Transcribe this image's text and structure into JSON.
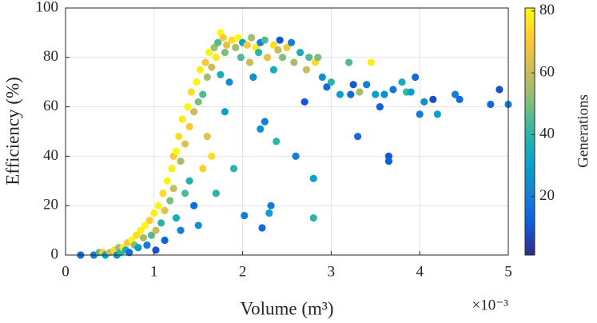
{
  "chart_data": {
    "type": "scatter",
    "xlabel": "Volume (m³)",
    "ylabel": "Efficiency (%)",
    "x_multiplier": "×10⁻³",
    "colorbar_label": "Generations",
    "xlim": [
      0,
      5
    ],
    "xticks": [
      0,
      1,
      2,
      3,
      4,
      5
    ],
    "ylim": [
      0,
      100
    ],
    "yticks": [
      0,
      20,
      40,
      60,
      80,
      100
    ],
    "clim": [
      1,
      81
    ],
    "cticks": [
      20,
      40,
      60,
      80
    ],
    "colormap": [
      "#352a87",
      "#0f5cdd",
      "#1481d6",
      "#06a4ca",
      "#2eb7a4",
      "#87bf77",
      "#d1bb59",
      "#fec832",
      "#f9fb0e"
    ],
    "grid": true,
    "x": [
      0.17,
      0.32,
      0.38,
      0.42,
      0.45,
      0.5,
      0.55,
      0.58,
      0.6,
      0.62,
      0.65,
      0.68,
      0.7,
      0.72,
      0.75,
      0.78,
      0.8,
      0.82,
      0.85,
      0.88,
      0.9,
      0.92,
      0.95,
      0.97,
      1.0,
      1.02,
      1.02,
      1.05,
      1.08,
      1.1,
      1.12,
      1.12,
      1.15,
      1.18,
      1.2,
      1.22,
      1.22,
      1.25,
      1.25,
      1.28,
      1.3,
      1.3,
      1.32,
      1.35,
      1.35,
      1.38,
      1.4,
      1.4,
      1.42,
      1.45,
      1.45,
      1.48,
      1.5,
      1.5,
      1.52,
      1.55,
      1.55,
      1.58,
      1.6,
      1.6,
      1.62,
      1.65,
      1.65,
      1.68,
      1.7,
      1.7,
      1.72,
      1.75,
      1.75,
      1.78,
      1.8,
      1.8,
      1.82,
      1.85,
      1.88,
      1.9,
      1.92,
      1.95,
      1.98,
      2.0,
      2.02,
      2.05,
      2.08,
      2.1,
      2.12,
      2.15,
      2.18,
      2.2,
      2.2,
      2.22,
      2.25,
      2.25,
      2.28,
      2.3,
      2.32,
      2.35,
      2.35,
      2.38,
      2.4,
      2.42,
      2.45,
      2.5,
      2.55,
      2.58,
      2.6,
      2.65,
      2.7,
      2.72,
      2.75,
      2.8,
      2.8,
      2.82,
      2.85,
      2.9,
      2.95,
      3.0,
      3.1,
      3.2,
      3.22,
      3.25,
      3.3,
      3.32,
      3.4,
      3.45,
      3.5,
      3.55,
      3.6,
      3.65,
      3.65,
      3.7,
      3.8,
      3.85,
      3.9,
      3.95,
      4.0,
      4.05,
      4.15,
      4.2,
      4.4,
      4.45,
      4.8,
      4.9,
      5.0
    ],
    "values": [
      0,
      0,
      1,
      1,
      0,
      1,
      2,
      0,
      3,
      1,
      3,
      2,
      5,
      1,
      6,
      4,
      8,
      3,
      10,
      7,
      12,
      4,
      14,
      8,
      17,
      10,
      2,
      20,
      13,
      25,
      18,
      6,
      30,
      22,
      35,
      27,
      40,
      42,
      15,
      48,
      38,
      10,
      55,
      45,
      25,
      60,
      52,
      30,
      66,
      58,
      20,
      70,
      62,
      12,
      75,
      65,
      35,
      78,
      72,
      48,
      82,
      76,
      40,
      84,
      80,
      25,
      86,
      90,
      73,
      88,
      82,
      58,
      85,
      70,
      87,
      35,
      84,
      88,
      80,
      86,
      16,
      85,
      78,
      88,
      72,
      84,
      82,
      86,
      51,
      11,
      87,
      54,
      80,
      17,
      20,
      85,
      75,
      46,
      83,
      87,
      80,
      84,
      86,
      78,
      40,
      82,
      62,
      75,
      80,
      31,
      15,
      78,
      80,
      72,
      68,
      70,
      65,
      78,
      65,
      69,
      48,
      66,
      69,
      78,
      65,
      60,
      65,
      40,
      38,
      67,
      70,
      66,
      66,
      72,
      57,
      62,
      63,
      57,
      65,
      63,
      61,
      67,
      61
    ],
    "color_values": [
      15,
      20,
      45,
      70,
      30,
      60,
      75,
      25,
      55,
      40,
      78,
      35,
      70,
      15,
      80,
      50,
      75,
      30,
      78,
      55,
      80,
      20,
      72,
      45,
      78,
      60,
      10,
      80,
      40,
      75,
      65,
      12,
      80,
      50,
      78,
      60,
      70,
      80,
      35,
      75,
      55,
      20,
      78,
      65,
      45,
      80,
      70,
      38,
      75,
      60,
      15,
      80,
      50,
      25,
      78,
      45,
      72,
      70,
      55,
      65,
      80,
      60,
      75,
      55,
      78,
      40,
      45,
      80,
      35,
      70,
      50,
      30,
      65,
      25,
      75,
      40,
      55,
      80,
      45,
      30,
      20,
      70,
      60,
      55,
      25,
      78,
      40,
      20,
      25,
      15,
      45,
      20,
      65,
      30,
      20,
      75,
      35,
      40,
      60,
      10,
      50,
      70,
      20,
      55,
      20,
      35,
      10,
      60,
      45,
      30,
      40,
      75,
      50,
      25,
      15,
      40,
      30,
      45,
      15,
      10,
      15,
      55,
      20,
      78,
      30,
      12,
      25,
      10,
      12,
      18,
      35,
      42,
      30,
      15,
      20,
      25,
      8,
      30,
      20,
      15,
      15,
      8,
      20
    ]
  }
}
